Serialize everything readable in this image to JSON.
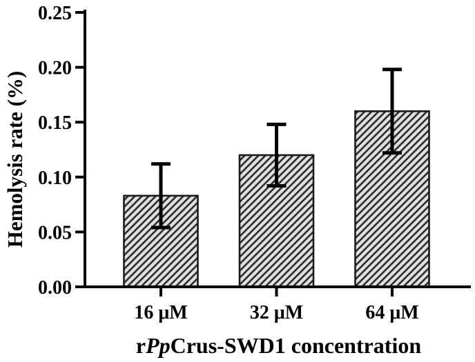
{
  "chart_data": {
    "type": "bar",
    "title": "",
    "ylabel": "Hemolysis rate (%)",
    "xlabel": "rPpCrus-SWD1 concentration",
    "xlabel_parts": {
      "prefix": "r",
      "italic": "Pp",
      "suffix": "Crus-SWD1 concentration"
    },
    "categories": [
      "16 μM",
      "32 μM",
      "64 μM"
    ],
    "values": [
      0.083,
      0.12,
      0.16
    ],
    "errors": [
      0.029,
      0.028,
      0.038
    ],
    "ylim": [
      0,
      0.25
    ],
    "ytick_step": 0.05,
    "ytick_labels": [
      "0.00",
      "0.05",
      "0.10",
      "0.15",
      "0.20",
      "0.25"
    ],
    "grid": false,
    "legend": "none",
    "bar_hatch": "diagonal-forward",
    "colors": {
      "background": "#ffffff",
      "bar_fill": "#e0e0e0",
      "hatch": "#2f2f2f",
      "bar_border": "#1a1a1a",
      "axis": "#000000",
      "error_bar": "#000000",
      "text": "#000000"
    }
  }
}
